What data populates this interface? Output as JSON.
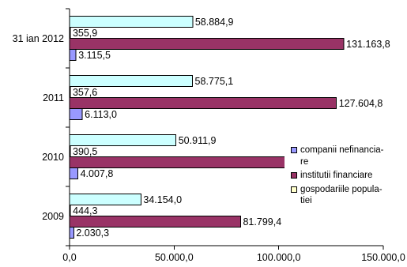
{
  "chart_data": {
    "type": "bar",
    "orientation": "horizontal",
    "categories": [
      "2009",
      "2010",
      "2011",
      "31 ian 2012"
    ],
    "series": [
      {
        "name": "companii nefinancia-re",
        "color": "#9999FF",
        "values": [
          2030.3,
          4007.8,
          6113.0,
          3115.5
        ],
        "labels": [
          "2.030,3",
          "4.007,8",
          "6.113,0",
          "3.115,5"
        ]
      },
      {
        "name": "institutii financiare",
        "color": "#993366",
        "values": [
          81799.4,
          103000,
          127604.8,
          131163.8
        ],
        "labels": [
          "81.799,4",
          null,
          "127.604,8",
          "131.163,8"
        ]
      },
      {
        "name": "gospodariile popula-tiei",
        "color": "#FFFFCC",
        "values": [
          444.3,
          390.5,
          357.6,
          355.9
        ],
        "labels": [
          "444,3",
          "390,5",
          "357,6",
          "355,9"
        ]
      },
      {
        "color": "#CCFFFF",
        "values": [
          34154.0,
          50911.9,
          58775.1,
          58884.9
        ],
        "labels": [
          "34.154,0",
          "50.911,9",
          "58.775,1",
          "58.884,9"
        ]
      }
    ],
    "xlim": [
      0,
      150000
    ],
    "x_ticks": {
      "values": [
        0,
        50000,
        100000,
        150000
      ],
      "labels": [
        "0,0",
        "50.000,0",
        "100.000,0",
        "150.000,0"
      ]
    },
    "grid": false,
    "legend": {
      "placement": "right"
    }
  }
}
